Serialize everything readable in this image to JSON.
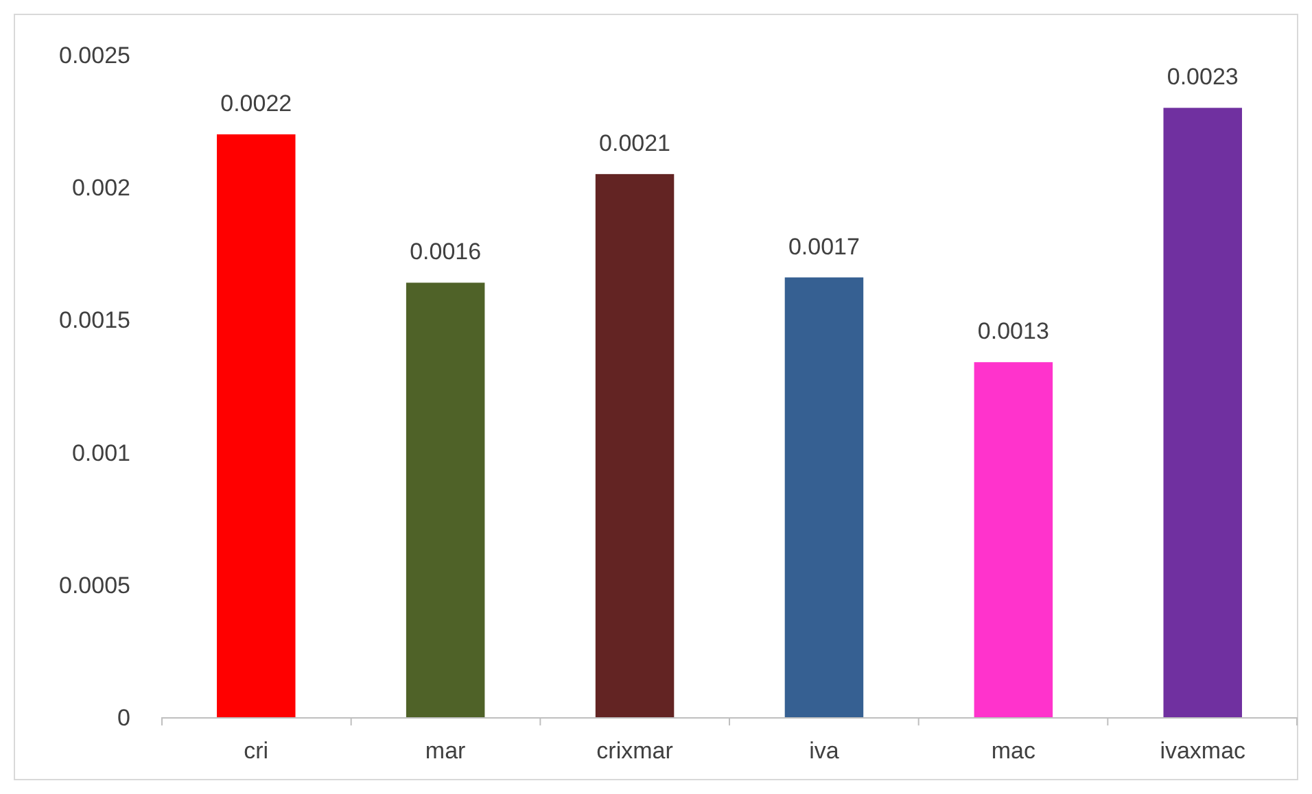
{
  "chart_data": {
    "type": "bar",
    "categories": [
      "cri",
      "mar",
      "crixmar",
      "iva",
      "mac",
      "ivaxmac"
    ],
    "values": [
      0.0022,
      0.00164,
      0.00205,
      0.00166,
      0.00134,
      0.0023
    ],
    "colors": [
      "#ff0000",
      "#4f6228",
      "#632423",
      "#366092",
      "#ff33cc",
      "#7030a0"
    ],
    "value_labels": [
      "0.0022",
      "0.0016",
      "0.0021",
      "0.0017",
      "0.0013",
      "0.0023"
    ],
    "ylim": [
      0,
      0.0025
    ],
    "yticks": [
      0,
      0.0005,
      0.001,
      0.0015,
      0.002,
      0.0025
    ],
    "grid": false
  }
}
